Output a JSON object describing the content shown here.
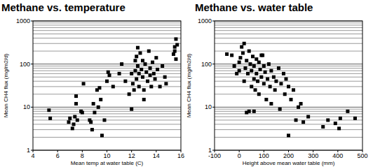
{
  "chart_data": [
    {
      "type": "scatter",
      "title": "Methane vs. temperature",
      "x_label": "Mean temp at water table (C)",
      "y_label": "Mean CH4 flux (mg/m2/d)",
      "x": [
        5.3,
        5.4,
        6.9,
        7.0,
        7.2,
        7.3,
        7.4,
        7.5,
        7.5,
        7.6,
        7.9,
        8.0,
        8.1,
        8.6,
        8.7,
        8.8,
        8.9,
        9.0,
        9.2,
        9.3,
        9.4,
        9.5,
        9.6,
        9.8,
        10.0,
        10.1,
        10.2,
        10.5,
        11.0,
        11.2,
        11.5,
        11.8,
        12.0,
        12.0,
        12.1,
        12.2,
        12.3,
        12.3,
        12.4,
        12.4,
        12.5,
        12.5,
        12.6,
        12.6,
        12.7,
        12.8,
        12.9,
        13.0,
        13.1,
        13.2,
        13.3,
        13.4,
        13.5,
        13.5,
        13.6,
        13.7,
        13.8,
        13.9,
        14.0,
        14.1,
        14.3,
        14.5,
        14.7,
        15.4,
        15.5,
        15.5,
        15.6,
        15.6,
        15.7,
        14.8,
        13.0,
        12.9
      ],
      "values": [
        8.5,
        5.5,
        4.5,
        5.5,
        3.2,
        4,
        6,
        12,
        18,
        5,
        8,
        7.5,
        35,
        5,
        4.5,
        3,
        12,
        7.5,
        25,
        10,
        28,
        15,
        2.2,
        5,
        40,
        65,
        55,
        30,
        60,
        100,
        40,
        20,
        9,
        60,
        35,
        25,
        70,
        120,
        150,
        45,
        90,
        240,
        60,
        30,
        180,
        75,
        50,
        15,
        100,
        65,
        40,
        200,
        80,
        55,
        30,
        110,
        60,
        45,
        140,
        75,
        30,
        90,
        50,
        170,
        250,
        200,
        380,
        130,
        280,
        35,
        25,
        120
      ],
      "color": "#000000",
      "marker": "square",
      "log": "y",
      "grid": true,
      "xlim": [
        4,
        16
      ],
      "xticks": [
        4,
        6,
        8,
        10,
        12,
        14,
        16
      ],
      "ylim": [
        1,
        1000
      ],
      "yticks": [
        1,
        10,
        100,
        1000
      ]
    },
    {
      "type": "scatter",
      "title": "Methane vs. water table",
      "x_label": "Height above mean water table (mm)",
      "y_label": "Mean CH4 flux (mg/m2/d)",
      "x": [
        -50,
        -30,
        -20,
        -10,
        0,
        0,
        5,
        10,
        15,
        20,
        20,
        25,
        30,
        30,
        35,
        40,
        40,
        45,
        50,
        50,
        55,
        60,
        60,
        65,
        70,
        70,
        75,
        80,
        80,
        85,
        90,
        95,
        100,
        100,
        105,
        110,
        115,
        120,
        125,
        130,
        140,
        145,
        150,
        160,
        165,
        170,
        180,
        185,
        190,
        200,
        200,
        210,
        220,
        230,
        240,
        250,
        260,
        280,
        340,
        360,
        390,
        405,
        410,
        440,
        470,
        60,
        90,
        130
      ],
      "values": [
        170,
        160,
        90,
        60,
        110,
        70,
        140,
        250,
        180,
        300,
        40,
        80,
        7.5,
        120,
        60,
        8,
        200,
        100,
        30,
        70,
        150,
        45,
        90,
        25,
        130,
        60,
        40,
        110,
        20,
        75,
        50,
        160,
        35,
        90,
        65,
        15,
        45,
        100,
        30,
        70,
        50,
        25,
        40,
        80,
        9,
        35,
        60,
        20,
        45,
        30,
        2.2,
        15,
        25,
        5,
        10,
        12,
        4.5,
        6,
        3.5,
        5,
        4.2,
        3.2,
        5.5,
        8,
        5.5,
        8,
        160,
        12
      ],
      "color": "#000000",
      "marker": "square",
      "log": "y",
      "grid": true,
      "xlim": [
        -100,
        500
      ],
      "xticks": [
        -100,
        0,
        100,
        200,
        300,
        400,
        500
      ],
      "ylim": [
        1,
        1000
      ],
      "yticks": [
        1,
        10,
        100,
        1000
      ]
    }
  ]
}
